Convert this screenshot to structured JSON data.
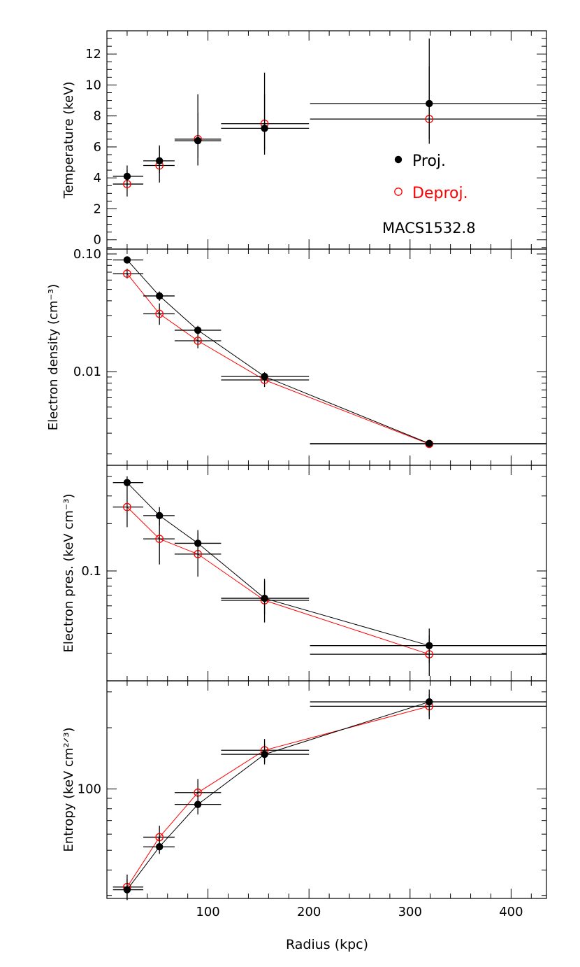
{
  "figure": {
    "object_name": "MACS1532.8",
    "xlabel": "Radius (kpc)",
    "xlim": [
      0,
      435
    ],
    "xticks": [
      100,
      200,
      300,
      400
    ],
    "colors": {
      "proj": "#000000",
      "deproj": "#ff0000"
    },
    "legend": {
      "placement": "inside top panel, right",
      "proj_label": "Proj.",
      "deproj_label": "Deproj."
    }
  },
  "chart_data": [
    {
      "type": "scatter",
      "ylabel": "Temperature (keV)",
      "yscale": "linear",
      "ylim": [
        -0.6,
        13.5
      ],
      "yticks": [
        {
          "v": 0,
          "t": "0"
        },
        {
          "v": 2,
          "t": "2"
        },
        {
          "v": 4,
          "t": "4"
        },
        {
          "v": 6,
          "t": "6"
        },
        {
          "v": 8,
          "t": "8"
        },
        {
          "v": 10,
          "t": "10"
        },
        {
          "v": 12,
          "t": "12"
        }
      ],
      "connect": false,
      "series": [
        {
          "name": "Proj.",
          "color": "#000000",
          "marker": "filled",
          "points": [
            {
              "x": 20,
              "xlo": 6,
              "xhi": 36,
              "y": 4.1,
              "ylo": 3.4,
              "yhi": 4.8
            },
            {
              "x": 52,
              "xlo": 36,
              "xhi": 67,
              "y": 5.1,
              "ylo": 4.3,
              "yhi": 6.0
            },
            {
              "x": 90,
              "xlo": 67,
              "xhi": 113,
              "y": 6.4,
              "ylo": 5.3,
              "yhi": 8.2
            },
            {
              "x": 156,
              "xlo": 113,
              "xhi": 200,
              "y": 7.2,
              "ylo": 5.8,
              "yhi": 9.4
            },
            {
              "x": 319,
              "xlo": 201,
              "xhi": 435,
              "y": 8.8,
              "ylo": 6.5,
              "yhi": 11.2
            }
          ]
        },
        {
          "name": "Deproj.",
          "color": "#ff0000",
          "marker": "open",
          "points": [
            {
              "x": 20,
              "xlo": 6,
              "xhi": 36,
              "y": 3.6,
              "ylo": 2.8,
              "yhi": 4.5
            },
            {
              "x": 52,
              "xlo": 36,
              "xhi": 67,
              "y": 4.8,
              "ylo": 3.7,
              "yhi": 6.1
            },
            {
              "x": 90,
              "xlo": 67,
              "xhi": 113,
              "y": 6.5,
              "ylo": 4.8,
              "yhi": 9.4
            },
            {
              "x": 156,
              "xlo": 113,
              "xhi": 200,
              "y": 7.5,
              "ylo": 5.5,
              "yhi": 10.8
            },
            {
              "x": 319,
              "xlo": 201,
              "xhi": 435,
              "y": 7.8,
              "ylo": 6.2,
              "yhi": 13.0
            }
          ]
        }
      ]
    },
    {
      "type": "line",
      "ylabel": "Electron density (cm⁻³)",
      "yscale": "log",
      "ylim": [
        0.0016,
        0.11
      ],
      "yticks": [
        {
          "v": 0.01,
          "t": "0.01"
        },
        {
          "v": 0.1,
          "t": "0.10"
        }
      ],
      "connect": true,
      "series": [
        {
          "name": "Proj.",
          "color": "#000000",
          "marker": "filled",
          "points": [
            {
              "x": 20,
              "xlo": 6,
              "xhi": 36,
              "y": 0.089,
              "ylo": 0.083,
              "yhi": 0.095
            },
            {
              "x": 52,
              "xlo": 36,
              "xhi": 67,
              "y": 0.044,
              "ylo": 0.04,
              "yhi": 0.048
            },
            {
              "x": 90,
              "xlo": 67,
              "xhi": 113,
              "y": 0.0225,
              "ylo": 0.0205,
              "yhi": 0.0245
            },
            {
              "x": 156,
              "xlo": 113,
              "xhi": 200,
              "y": 0.0091,
              "ylo": 0.0083,
              "yhi": 0.0099
            },
            {
              "x": 319,
              "xlo": 201,
              "xhi": 435,
              "y": 0.00245,
              "ylo": 0.00232,
              "yhi": 0.00258
            }
          ]
        },
        {
          "name": "Deproj.",
          "color": "#ff0000",
          "marker": "open",
          "points": [
            {
              "x": 20,
              "xlo": 6,
              "xhi": 36,
              "y": 0.068,
              "ylo": 0.062,
              "yhi": 0.075
            },
            {
              "x": 52,
              "xlo": 36,
              "xhi": 67,
              "y": 0.031,
              "ylo": 0.025,
              "yhi": 0.038
            },
            {
              "x": 90,
              "xlo": 67,
              "xhi": 113,
              "y": 0.0183,
              "ylo": 0.0158,
              "yhi": 0.0212
            },
            {
              "x": 156,
              "xlo": 113,
              "xhi": 200,
              "y": 0.0085,
              "ylo": 0.0074,
              "yhi": 0.0097
            },
            {
              "x": 319,
              "xlo": 201,
              "xhi": 435,
              "y": 0.00243,
              "ylo": 0.0023,
              "yhi": 0.00257
            }
          ]
        }
      ]
    },
    {
      "type": "line",
      "ylabel": "Electron pres. (keV cm⁻³)",
      "yscale": "log",
      "ylim": [
        0.02,
        0.47
      ],
      "yticks": [
        {
          "v": 0.1,
          "t": "0.1"
        }
      ],
      "connect": true,
      "series": [
        {
          "name": "Proj.",
          "color": "#000000",
          "marker": "filled",
          "points": [
            {
              "x": 20,
              "xlo": 6,
              "xhi": 36,
              "y": 0.365,
              "ylo": 0.33,
              "yhi": 0.4
            },
            {
              "x": 52,
              "xlo": 36,
              "xhi": 67,
              "y": 0.225,
              "ylo": 0.195,
              "yhi": 0.255
            },
            {
              "x": 90,
              "xlo": 67,
              "xhi": 113,
              "y": 0.15,
              "ylo": 0.122,
              "yhi": 0.182
            },
            {
              "x": 156,
              "xlo": 113,
              "xhi": 200,
              "y": 0.067,
              "ylo": 0.053,
              "yhi": 0.086
            },
            {
              "x": 319,
              "xlo": 201,
              "xhi": 435,
              "y": 0.0335,
              "ylo": 0.026,
              "yhi": 0.043
            }
          ]
        },
        {
          "name": "Deproj.",
          "color": "#ff0000",
          "marker": "open",
          "points": [
            {
              "x": 20,
              "xlo": 6,
              "xhi": 36,
              "y": 0.255,
              "ylo": 0.19,
              "yhi": 0.33
            },
            {
              "x": 52,
              "xlo": 36,
              "xhi": 67,
              "y": 0.16,
              "ylo": 0.11,
              "yhi": 0.22
            },
            {
              "x": 90,
              "xlo": 67,
              "xhi": 113,
              "y": 0.128,
              "ylo": 0.092,
              "yhi": 0.175
            },
            {
              "x": 156,
              "xlo": 113,
              "xhi": 200,
              "y": 0.065,
              "ylo": 0.047,
              "yhi": 0.089
            },
            {
              "x": 319,
              "xlo": 201,
              "xhi": 435,
              "y": 0.0295,
              "ylo": 0.0215,
              "yhi": 0.039
            }
          ]
        }
      ]
    },
    {
      "type": "line",
      "ylabel": "Entropy (keV cm²ᐟ³)",
      "yscale": "log",
      "ylim": [
        29,
        340
      ],
      "yticks": [
        {
          "v": 100,
          "t": "100"
        }
      ],
      "connect": true,
      "series": [
        {
          "name": "Proj.",
          "color": "#000000",
          "marker": "filled",
          "points": [
            {
              "x": 20,
              "xlo": 6,
              "xhi": 36,
              "y": 32,
              "ylo": 28.5,
              "yhi": 36
            },
            {
              "x": 52,
              "xlo": 36,
              "xhi": 67,
              "y": 52,
              "ylo": 48,
              "yhi": 57
            },
            {
              "x": 90,
              "xlo": 67,
              "xhi": 113,
              "y": 84,
              "ylo": 75,
              "yhi": 93
            },
            {
              "x": 156,
              "xlo": 113,
              "xhi": 200,
              "y": 148,
              "ylo": 132,
              "yhi": 166
            },
            {
              "x": 319,
              "xlo": 201,
              "xhi": 435,
              "y": 268,
              "ylo": 228,
              "yhi": 308
            }
          ]
        },
        {
          "name": "Deproj.",
          "color": "#ff0000",
          "marker": "open",
          "points": [
            {
              "x": 20,
              "xlo": 6,
              "xhi": 36,
              "y": 33,
              "ylo": 28.5,
              "yhi": 38
            },
            {
              "x": 52,
              "xlo": 36,
              "xhi": 67,
              "y": 58,
              "ylo": 50,
              "yhi": 66
            },
            {
              "x": 90,
              "xlo": 67,
              "xhi": 113,
              "y": 96,
              "ylo": 82,
              "yhi": 112
            },
            {
              "x": 156,
              "xlo": 113,
              "xhi": 200,
              "y": 155,
              "ylo": 136,
              "yhi": 176
            },
            {
              "x": 319,
              "xlo": 201,
              "xhi": 435,
              "y": 255,
              "ylo": 220,
              "yhi": 292
            }
          ]
        }
      ]
    }
  ]
}
